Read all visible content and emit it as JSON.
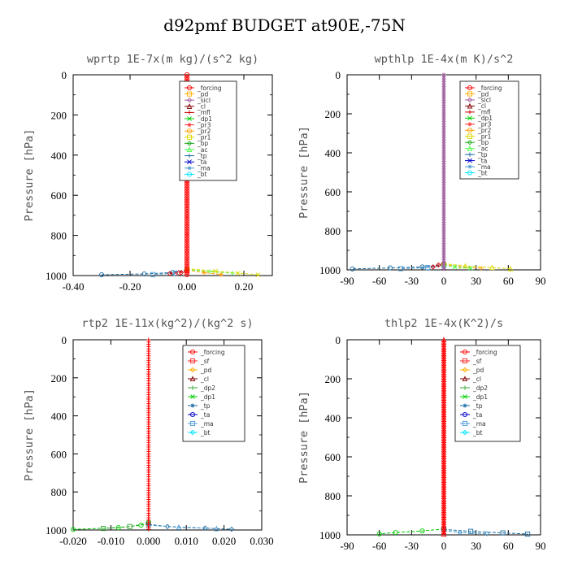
{
  "title": "d92pmf  BUDGET at90E,-75N",
  "colors": {
    "_forcing": "#ff0000",
    "_pd": "#ffb000",
    "_sicl": "#a060a0",
    "_cl": "#800000",
    "_mfl": "#cc0000",
    "_dp1": "#00cc00",
    "_dp2": "#33aa33",
    "_pr3": "#ff3030",
    "_pr2": "#ffa000",
    "_pr1": "#d8d800",
    "_bp": "#22aa22",
    "_ac": "#44ff44",
    "_tp": "#1a6aa0",
    "_ta": "#0000cc",
    "_ma": "#4a9ad0",
    "_bt": "#00e5ff",
    "_sf": "#ff2020"
  },
  "chart_data": [
    {
      "type": "line",
      "title": "wprtp  1E-7x(m kg)/(s^2 kg)",
      "ylabel": "Pressure [hPa]",
      "xlim": [
        -0.4,
        0.3
      ],
      "ylim": [
        1000,
        0
      ],
      "xticks": [
        -0.4,
        -0.2,
        0.0,
        0.2
      ],
      "xtick_labels": [
        "-0.40",
        "-0.20",
        "0.00",
        "0.20"
      ],
      "yticks": [
        0,
        200,
        400,
        600,
        800,
        1000
      ],
      "ytick_labels": [
        "0",
        "200",
        "400",
        "600",
        "800",
        "1000"
      ],
      "legend": [
        "_forcing",
        "_pd",
        "_sicl",
        "_cl",
        "_mfl",
        "_dp1",
        "_pr3",
        "_pr2",
        "_pr1",
        "_bp",
        "_ac",
        "_tp",
        "_ta",
        "_ma",
        "_bt"
      ],
      "series": [
        {
          "name": "_tp",
          "x": [
            0,
            -0.05,
            -0.15,
            -0.3
          ],
          "y": [
            970,
            985,
            992,
            996
          ]
        },
        {
          "name": "_ma",
          "x": [
            0,
            -0.04,
            -0.12
          ],
          "y": [
            975,
            988,
            995
          ]
        },
        {
          "name": "_mfl",
          "x": [
            0,
            -0.02,
            -0.06
          ],
          "y": [
            975,
            985,
            990
          ]
        },
        {
          "name": "_pr3",
          "x": [
            0,
            -0.03
          ],
          "y": [
            975,
            985
          ]
        },
        {
          "name": "_ac",
          "x": [
            0,
            0.08,
            0.16
          ],
          "y": [
            970,
            980,
            988
          ]
        },
        {
          "name": "_pr1",
          "x": [
            0,
            0.1,
            0.18,
            0.25
          ],
          "y": [
            965,
            978,
            988,
            996
          ]
        },
        {
          "name": "_pr2",
          "x": [
            0,
            0.06,
            0.12
          ],
          "y": [
            972,
            985,
            995
          ]
        },
        {
          "name": "_forcing",
          "x": [
            0,
            0,
            0,
            0,
            0,
            0
          ],
          "y": [
            0,
            200,
            400,
            600,
            800,
            1000
          ]
        }
      ]
    },
    {
      "type": "line",
      "title": "wpthlp  1E-4x(m K)/s^2",
      "ylabel": "Pressure [hPa]",
      "xlim": [
        -90,
        90
      ],
      "ylim": [
        1000,
        0
      ],
      "xticks": [
        -90,
        -60,
        -30,
        0,
        30,
        60,
        90
      ],
      "xtick_labels": [
        "-90",
        "-60",
        "-30",
        "0",
        "30",
        "60",
        "90"
      ],
      "yticks": [
        0,
        200,
        400,
        600,
        800,
        1000
      ],
      "ytick_labels": [
        "0",
        "200",
        "400",
        "600",
        "800",
        "1000"
      ],
      "legend": [
        "_forcing",
        "_pd",
        "_sicl",
        "_cl",
        "_mfl",
        "_dp1",
        "_pr3",
        "_pr2",
        "_pr1",
        "_bp",
        "_ac",
        "_tp",
        "_ta",
        "_ma",
        "_bt"
      ],
      "series": [
        {
          "name": "_tp",
          "x": [
            0,
            -20,
            -50,
            -85
          ],
          "y": [
            975,
            985,
            990,
            995
          ]
        },
        {
          "name": "_ma",
          "x": [
            0,
            -15,
            -40
          ],
          "y": [
            978,
            988,
            994
          ]
        },
        {
          "name": "_mfl",
          "x": [
            0,
            -5,
            -10
          ],
          "y": [
            965,
            975,
            985
          ]
        },
        {
          "name": "_pr1",
          "x": [
            0,
            20,
            45,
            62
          ],
          "y": [
            968,
            980,
            988,
            994
          ]
        },
        {
          "name": "_pr2",
          "x": [
            0,
            15,
            35
          ],
          "y": [
            972,
            985,
            992
          ]
        },
        {
          "name": "_ac",
          "x": [
            0,
            10,
            25
          ],
          "y": [
            975,
            985,
            992
          ]
        },
        {
          "name": "_sicl",
          "x": [
            0,
            0,
            0,
            0,
            0,
            0
          ],
          "y": [
            0,
            200,
            400,
            600,
            800,
            1000
          ]
        }
      ]
    },
    {
      "type": "line",
      "title": "rtp2  1E-11x(kg^2)/(kg^2 s)",
      "ylabel": "Pressure [hPa]",
      "xlim": [
        -0.02,
        0.03
      ],
      "ylim": [
        1000,
        0
      ],
      "xticks": [
        -0.02,
        -0.01,
        0.0,
        0.01,
        0.02,
        0.03
      ],
      "xtick_labels": [
        "-0.020",
        "-0.010",
        "0.000",
        "0.010",
        "0.020",
        "0.030"
      ],
      "yticks": [
        0,
        200,
        400,
        600,
        800,
        1000
      ],
      "ytick_labels": [
        "0",
        "200",
        "400",
        "600",
        "800",
        "1000"
      ],
      "legend": [
        "_forcing",
        "_sf",
        "_pd",
        "_cl",
        "_dp2",
        "_dp1",
        "_tp",
        "_ta",
        "_ma",
        "_bt"
      ],
      "series": [
        {
          "name": "_dp1",
          "x": [
            0,
            -0.002,
            -0.008,
            -0.02
          ],
          "y": [
            960,
            975,
            988,
            997
          ]
        },
        {
          "name": "_dp2",
          "x": [
            0,
            -0.005,
            -0.012
          ],
          "y": [
            965,
            982,
            992
          ]
        },
        {
          "name": "_tp",
          "x": [
            0,
            0.005,
            0.015,
            0.022
          ],
          "y": [
            970,
            982,
            990,
            996
          ]
        },
        {
          "name": "_ma",
          "x": [
            0,
            0.008,
            0.018
          ],
          "y": [
            975,
            986,
            993
          ]
        },
        {
          "name": "_forcing",
          "x": [
            0,
            0,
            0,
            0,
            0,
            0
          ],
          "y": [
            0,
            200,
            400,
            600,
            800,
            1000
          ]
        }
      ]
    },
    {
      "type": "line",
      "title": "thlp2  1E-4x(K^2)/s",
      "ylabel": "Pressure [hPa]",
      "xlim": [
        -90,
        90
      ],
      "ylim": [
        1000,
        0
      ],
      "xticks": [
        -90,
        -60,
        -30,
        0,
        30,
        60,
        90
      ],
      "xtick_labels": [
        "-90",
        "-60",
        "-30",
        "0",
        "30",
        "60",
        "90"
      ],
      "yticks": [
        0,
        200,
        400,
        600,
        800,
        1000
      ],
      "ytick_labels": [
        "0",
        "200",
        "400",
        "600",
        "800",
        "1000"
      ],
      "legend": [
        "_forcing",
        "_sf",
        "_pd",
        "_cl",
        "_dp2",
        "_dp1",
        "_tp",
        "_ta",
        "_ma",
        "_bt"
      ],
      "series": [
        {
          "name": "_dp1",
          "x": [
            0,
            -20,
            -45,
            -60
          ],
          "y": [
            970,
            980,
            988,
            995
          ]
        },
        {
          "name": "_tp",
          "x": [
            0,
            25,
            55,
            78
          ],
          "y": [
            972,
            982,
            990,
            996
          ]
        },
        {
          "name": "_ma",
          "x": [
            0,
            15,
            40
          ],
          "y": [
            978,
            988,
            994
          ]
        },
        {
          "name": "_forcing",
          "x": [
            0,
            0,
            0,
            0,
            0,
            0
          ],
          "y": [
            0,
            200,
            400,
            600,
            800,
            1000
          ]
        }
      ]
    }
  ]
}
